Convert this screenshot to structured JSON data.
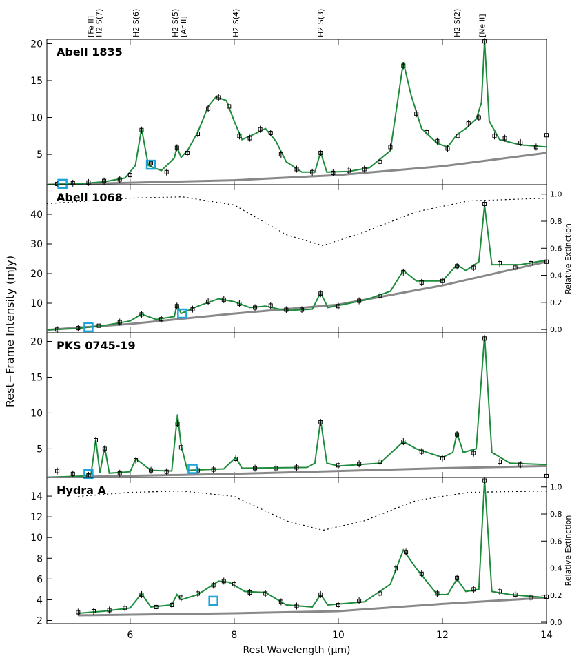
{
  "chart_data": [
    {
      "type": "line",
      "title": "Abell 1835",
      "ylabel": "Rest−Frame Intensity (mJy)",
      "annotations": [
        {
          "text": "[Fe II]",
          "x": 5.24
        },
        {
          "text": "H2 S(7)",
          "x": 5.4
        },
        {
          "text": "H2 S(6)",
          "x": 6.11
        },
        {
          "text": "H2 S(5)",
          "x": 6.86
        },
        {
          "text": "[Ar II]",
          "x": 7.02
        },
        {
          "text": "H2 S(4)",
          "x": 8.03
        },
        {
          "text": "H2 S(3)",
          "x": 9.66
        },
        {
          "text": "H2 S(2)",
          "x": 12.28
        },
        {
          "text": "[Ne II]",
          "x": 12.76
        }
      ],
      "xlim": [
        4.4,
        14
      ],
      "ylim": [
        0.9,
        20.6
      ],
      "yticks": [
        5,
        10,
        15,
        20
      ],
      "series": [
        {
          "color": "#888888",
          "linewidth": 3,
          "x": [
            4.4,
            8,
            10,
            12,
            14
          ],
          "values": [
            0.9,
            1.5,
            2.2,
            3.4,
            5.2
          ]
        },
        {
          "color": "#1e8c3c",
          "linewidth": 2,
          "x": [
            4.4,
            5.0,
            5.5,
            5.9,
            6.1,
            6.22,
            6.35,
            6.6,
            6.85,
            6.9,
            6.98,
            7.1,
            7.3,
            7.5,
            7.65,
            7.85,
            8.0,
            8.15,
            8.4,
            8.6,
            8.8,
            9.0,
            9.3,
            9.55,
            9.66,
            9.78,
            10.2,
            10.6,
            11.0,
            11.25,
            11.4,
            11.6,
            11.9,
            12.1,
            12.28,
            12.45,
            12.65,
            12.75,
            12.81,
            12.9,
            13.1,
            13.5,
            14.0
          ],
          "values": [
            0.9,
            1.0,
            1.3,
            1.8,
            3.5,
            8.5,
            3.5,
            2.8,
            4.5,
            6.0,
            4.6,
            5.5,
            8.0,
            11.5,
            12.8,
            12.3,
            9.5,
            7.0,
            7.8,
            8.5,
            6.8,
            4.0,
            2.6,
            2.6,
            5.3,
            2.6,
            2.7,
            3.2,
            5.5,
            17.5,
            13.0,
            8.5,
            6.5,
            6.0,
            7.7,
            8.5,
            9.8,
            12,
            20.4,
            9.5,
            7.0,
            6.3,
            6.0
          ]
        },
        {
          "color": "#000000",
          "marker": "square",
          "x": [
            4.6,
            4.9,
            5.2,
            5.5,
            5.8,
            6.0,
            6.22,
            6.4,
            6.7,
            6.9,
            7.1,
            7.3,
            7.5,
            7.7,
            7.9,
            8.1,
            8.3,
            8.5,
            8.7,
            8.9,
            9.2,
            9.5,
            9.66,
            9.9,
            10.2,
            10.5,
            10.8,
            11.0,
            11.25,
            11.5,
            11.7,
            11.9,
            12.1,
            12.3,
            12.5,
            12.7,
            12.81,
            13.0,
            13.2,
            13.5,
            13.8,
            14.0
          ],
          "values": [
            1.0,
            1.1,
            1.2,
            1.4,
            1.6,
            2.2,
            8.3,
            3.8,
            2.6,
            5.9,
            5.2,
            7.8,
            11.2,
            12.7,
            11.5,
            7.5,
            7.2,
            8.4,
            7.9,
            5.0,
            3.0,
            2.6,
            5.2,
            2.5,
            2.8,
            3.0,
            4.0,
            6.0,
            17.0,
            10.5,
            8.0,
            6.8,
            5.8,
            7.5,
            9.2,
            10.0,
            20.3,
            7.5,
            7.2,
            6.6,
            6.0,
            7.6
          ]
        },
        {
          "color": "#1fa3d8",
          "marker": "big-square",
          "x": [
            4.7,
            6.4
          ],
          "values": [
            1.0,
            3.6
          ]
        }
      ]
    },
    {
      "type": "line",
      "title": "Abell 1068",
      "y2label": "Relative Extinction",
      "xlim": [
        4.4,
        14
      ],
      "ylim": [
        0,
        50
      ],
      "yticks": [
        10,
        20,
        30,
        40
      ],
      "y2lim": [
        -0.025,
        1.07
      ],
      "y2ticks": [
        {
          "value": 0,
          "label": "0.0"
        },
        {
          "value": 0.2,
          "label": "0.2"
        },
        {
          "value": 0.4,
          "label": "0.4"
        },
        {
          "value": 0.6,
          "label": "0.6"
        },
        {
          "value": 0.8,
          "label": "0.8"
        },
        {
          "value": 1,
          "label": "1.0"
        }
      ],
      "series": [
        {
          "color": "#000000",
          "dash": true,
          "axis": "y2",
          "x": [
            4.4,
            6,
            7,
            8,
            9,
            9.7,
            10.5,
            11.5,
            12.5,
            14
          ],
          "values": [
            0.93,
            0.97,
            0.98,
            0.92,
            0.7,
            0.62,
            0.72,
            0.87,
            0.95,
            0.97
          ]
        },
        {
          "color": "#888888",
          "linewidth": 3,
          "x": [
            4.4,
            6,
            8,
            10,
            12,
            14
          ],
          "values": [
            1,
            3,
            6.5,
            9.5,
            16,
            24
          ]
        },
        {
          "color": "#1e8c3c",
          "linewidth": 2,
          "x": [
            4.4,
            5.0,
            5.5,
            6.0,
            6.22,
            6.5,
            6.85,
            6.9,
            6.98,
            7.3,
            7.7,
            8.0,
            8.3,
            8.6,
            9.0,
            9.5,
            9.66,
            9.8,
            10.5,
            11.0,
            11.25,
            11.5,
            12.0,
            12.28,
            12.45,
            12.7,
            12.81,
            12.95,
            13.5,
            14.0
          ],
          "values": [
            1.0,
            1.5,
            2.5,
            4.0,
            6.3,
            4.5,
            5.5,
            9.5,
            6.5,
            9.0,
            11.5,
            10.5,
            8.5,
            9.0,
            7.5,
            8.0,
            13.5,
            8.5,
            11.0,
            14.0,
            21.0,
            17.5,
            17.5,
            23.0,
            21.0,
            24.0,
            43.0,
            23.0,
            23.0,
            24.5
          ]
        },
        {
          "color": "#000000",
          "marker": "square",
          "x": [
            4.6,
            5.0,
            5.4,
            5.8,
            6.22,
            6.6,
            6.9,
            7.2,
            7.5,
            7.8,
            8.1,
            8.4,
            8.7,
            9.0,
            9.3,
            9.66,
            10.0,
            10.4,
            10.8,
            11.25,
            11.6,
            12.0,
            12.28,
            12.6,
            12.81,
            13.1,
            13.4,
            13.7,
            14.0
          ],
          "values": [
            1.1,
            1.6,
            2.4,
            3.6,
            6.2,
            4.6,
            9.0,
            8.0,
            10.5,
            11.2,
            9.8,
            8.5,
            9.2,
            7.8,
            7.8,
            13.2,
            9.0,
            10.8,
            12.5,
            20.5,
            17.0,
            17.5,
            22.5,
            22.0,
            43.5,
            23.5,
            22.0,
            23.5,
            24.0
          ]
        },
        {
          "color": "#1fa3d8",
          "marker": "big-square",
          "x": [
            5.2,
            7.0
          ],
          "values": [
            1.9,
            6.5
          ]
        }
      ]
    },
    {
      "type": "line",
      "title": "PKS 0745-19",
      "xlim": [
        4.4,
        14
      ],
      "ylim": [
        1,
        21.2
      ],
      "yticks": [
        5,
        10,
        15,
        20
      ],
      "series": [
        {
          "color": "#888888",
          "linewidth": 3,
          "x": [
            4.4,
            8,
            10,
            12,
            14
          ],
          "values": [
            1.0,
            1.5,
            1.9,
            2.3,
            2.6
          ]
        },
        {
          "color": "#1e8c3c",
          "linewidth": 2,
          "x": [
            4.4,
            5.1,
            5.25,
            5.34,
            5.42,
            5.51,
            5.6,
            6.0,
            6.11,
            6.22,
            6.4,
            6.8,
            6.91,
            6.98,
            7.1,
            7.8,
            8.03,
            8.15,
            9.4,
            9.55,
            9.66,
            9.78,
            10.0,
            10.8,
            11.25,
            11.5,
            12.0,
            12.2,
            12.28,
            12.4,
            12.65,
            12.81,
            12.95,
            13.3,
            14.0
          ],
          "values": [
            1.0,
            1.2,
            1.5,
            6.3,
            1.6,
            5.3,
            1.6,
            1.8,
            3.6,
            3.0,
            2.0,
            1.9,
            9.8,
            5.5,
            2.0,
            2.2,
            3.8,
            2.3,
            2.4,
            3.0,
            9.0,
            3.0,
            2.6,
            3.0,
            6.0,
            5.0,
            3.8,
            4.5,
            7.2,
            4.5,
            5.0,
            20.8,
            4.5,
            3.0,
            2.8
          ]
        },
        {
          "color": "#000000",
          "marker": "square",
          "x": [
            4.6,
            4.9,
            5.2,
            5.34,
            5.51,
            5.8,
            6.11,
            6.4,
            6.7,
            6.91,
            6.98,
            7.3,
            7.6,
            8.03,
            8.4,
            8.8,
            9.2,
            9.66,
            10.0,
            10.4,
            10.8,
            11.25,
            11.6,
            12.0,
            12.28,
            12.6,
            12.81,
            13.1,
            13.5,
            14.0
          ],
          "values": [
            1.9,
            1.5,
            1.3,
            6.2,
            5.0,
            1.6,
            3.4,
            2.0,
            1.8,
            8.5,
            5.2,
            2.0,
            2.1,
            3.6,
            2.3,
            2.3,
            2.4,
            8.7,
            2.7,
            2.9,
            3.2,
            6.0,
            4.6,
            3.7,
            7.0,
            4.4,
            20.4,
            3.2,
            2.8,
            1.2
          ]
        },
        {
          "color": "#1fa3d8",
          "marker": "big-square",
          "x": [
            5.2,
            7.2
          ],
          "values": [
            1.5,
            2.2
          ]
        }
      ]
    },
    {
      "type": "line",
      "title": "Hydra A",
      "y2label": "Relative Extinction",
      "xlabel": "Rest Wavelength (μm)",
      "xlim": [
        4.4,
        14
      ],
      "xticks": [
        6,
        8,
        10,
        12,
        14
      ],
      "ylim": [
        1.7,
        15.8
      ],
      "yticks": [
        2,
        4,
        6,
        8,
        10,
        12,
        14
      ],
      "y2lim": [
        -0.01,
        1.07
      ],
      "y2ticks": [
        {
          "value": 0,
          "label": "0.0"
        },
        {
          "value": 0.2,
          "label": "0.2"
        },
        {
          "value": 0.4,
          "label": "0.4"
        },
        {
          "value": 0.6,
          "label": "0.6"
        },
        {
          "value": 0.8,
          "label": "0.8"
        },
        {
          "value": 1,
          "label": "1.0"
        }
      ],
      "series": [
        {
          "color": "#000000",
          "dash": true,
          "axis": "y2",
          "x": [
            5,
            6,
            7,
            8,
            9,
            9.7,
            10.5,
            11.5,
            12.5,
            14
          ],
          "values": [
            0.93,
            0.96,
            0.97,
            0.93,
            0.75,
            0.68,
            0.75,
            0.9,
            0.96,
            0.97
          ]
        },
        {
          "color": "#888888",
          "linewidth": 3,
          "x": [
            5.0,
            8,
            10,
            12,
            14
          ],
          "values": [
            2.5,
            2.7,
            2.9,
            3.6,
            4.2
          ]
        },
        {
          "color": "#1e8c3c",
          "linewidth": 2,
          "x": [
            5.0,
            5.5,
            6.0,
            6.22,
            6.4,
            6.8,
            6.9,
            6.98,
            7.3,
            7.7,
            7.9,
            8.2,
            8.6,
            9.0,
            9.5,
            9.66,
            9.8,
            10.5,
            11.0,
            11.25,
            11.5,
            11.9,
            12.1,
            12.28,
            12.45,
            12.7,
            12.81,
            12.95,
            13.3,
            14.0
          ],
          "values": [
            2.7,
            2.9,
            3.2,
            4.6,
            3.3,
            3.5,
            4.5,
            4.0,
            4.5,
            5.8,
            5.7,
            4.8,
            4.7,
            3.5,
            3.3,
            4.5,
            3.5,
            3.8,
            5.5,
            8.8,
            7.0,
            4.5,
            4.5,
            6.0,
            4.8,
            5.0,
            15.6,
            4.8,
            4.5,
            4.2
          ]
        },
        {
          "color": "#000000",
          "marker": "square",
          "x": [
            5.0,
            5.3,
            5.6,
            5.9,
            6.22,
            6.5,
            6.8,
            6.98,
            7.3,
            7.6,
            7.8,
            8.0,
            8.3,
            8.6,
            8.9,
            9.2,
            9.66,
            10.0,
            10.4,
            10.8,
            11.1,
            11.3,
            11.6,
            11.9,
            12.28,
            12.6,
            12.81,
            13.1,
            13.4,
            13.7,
            14.0
          ],
          "values": [
            2.8,
            2.9,
            3.0,
            3.2,
            4.5,
            3.3,
            3.5,
            4.2,
            4.6,
            5.4,
            5.8,
            5.5,
            4.7,
            4.6,
            3.8,
            3.4,
            4.5,
            3.5,
            3.9,
            4.6,
            7.0,
            8.6,
            6.5,
            4.6,
            6.1,
            5.0,
            15.5,
            4.8,
            4.5,
            4.2,
            4.3
          ]
        },
        {
          "color": "#1fa3d8",
          "marker": "big-square",
          "x": [
            7.6
          ],
          "values": [
            3.9
          ]
        }
      ]
    }
  ]
}
